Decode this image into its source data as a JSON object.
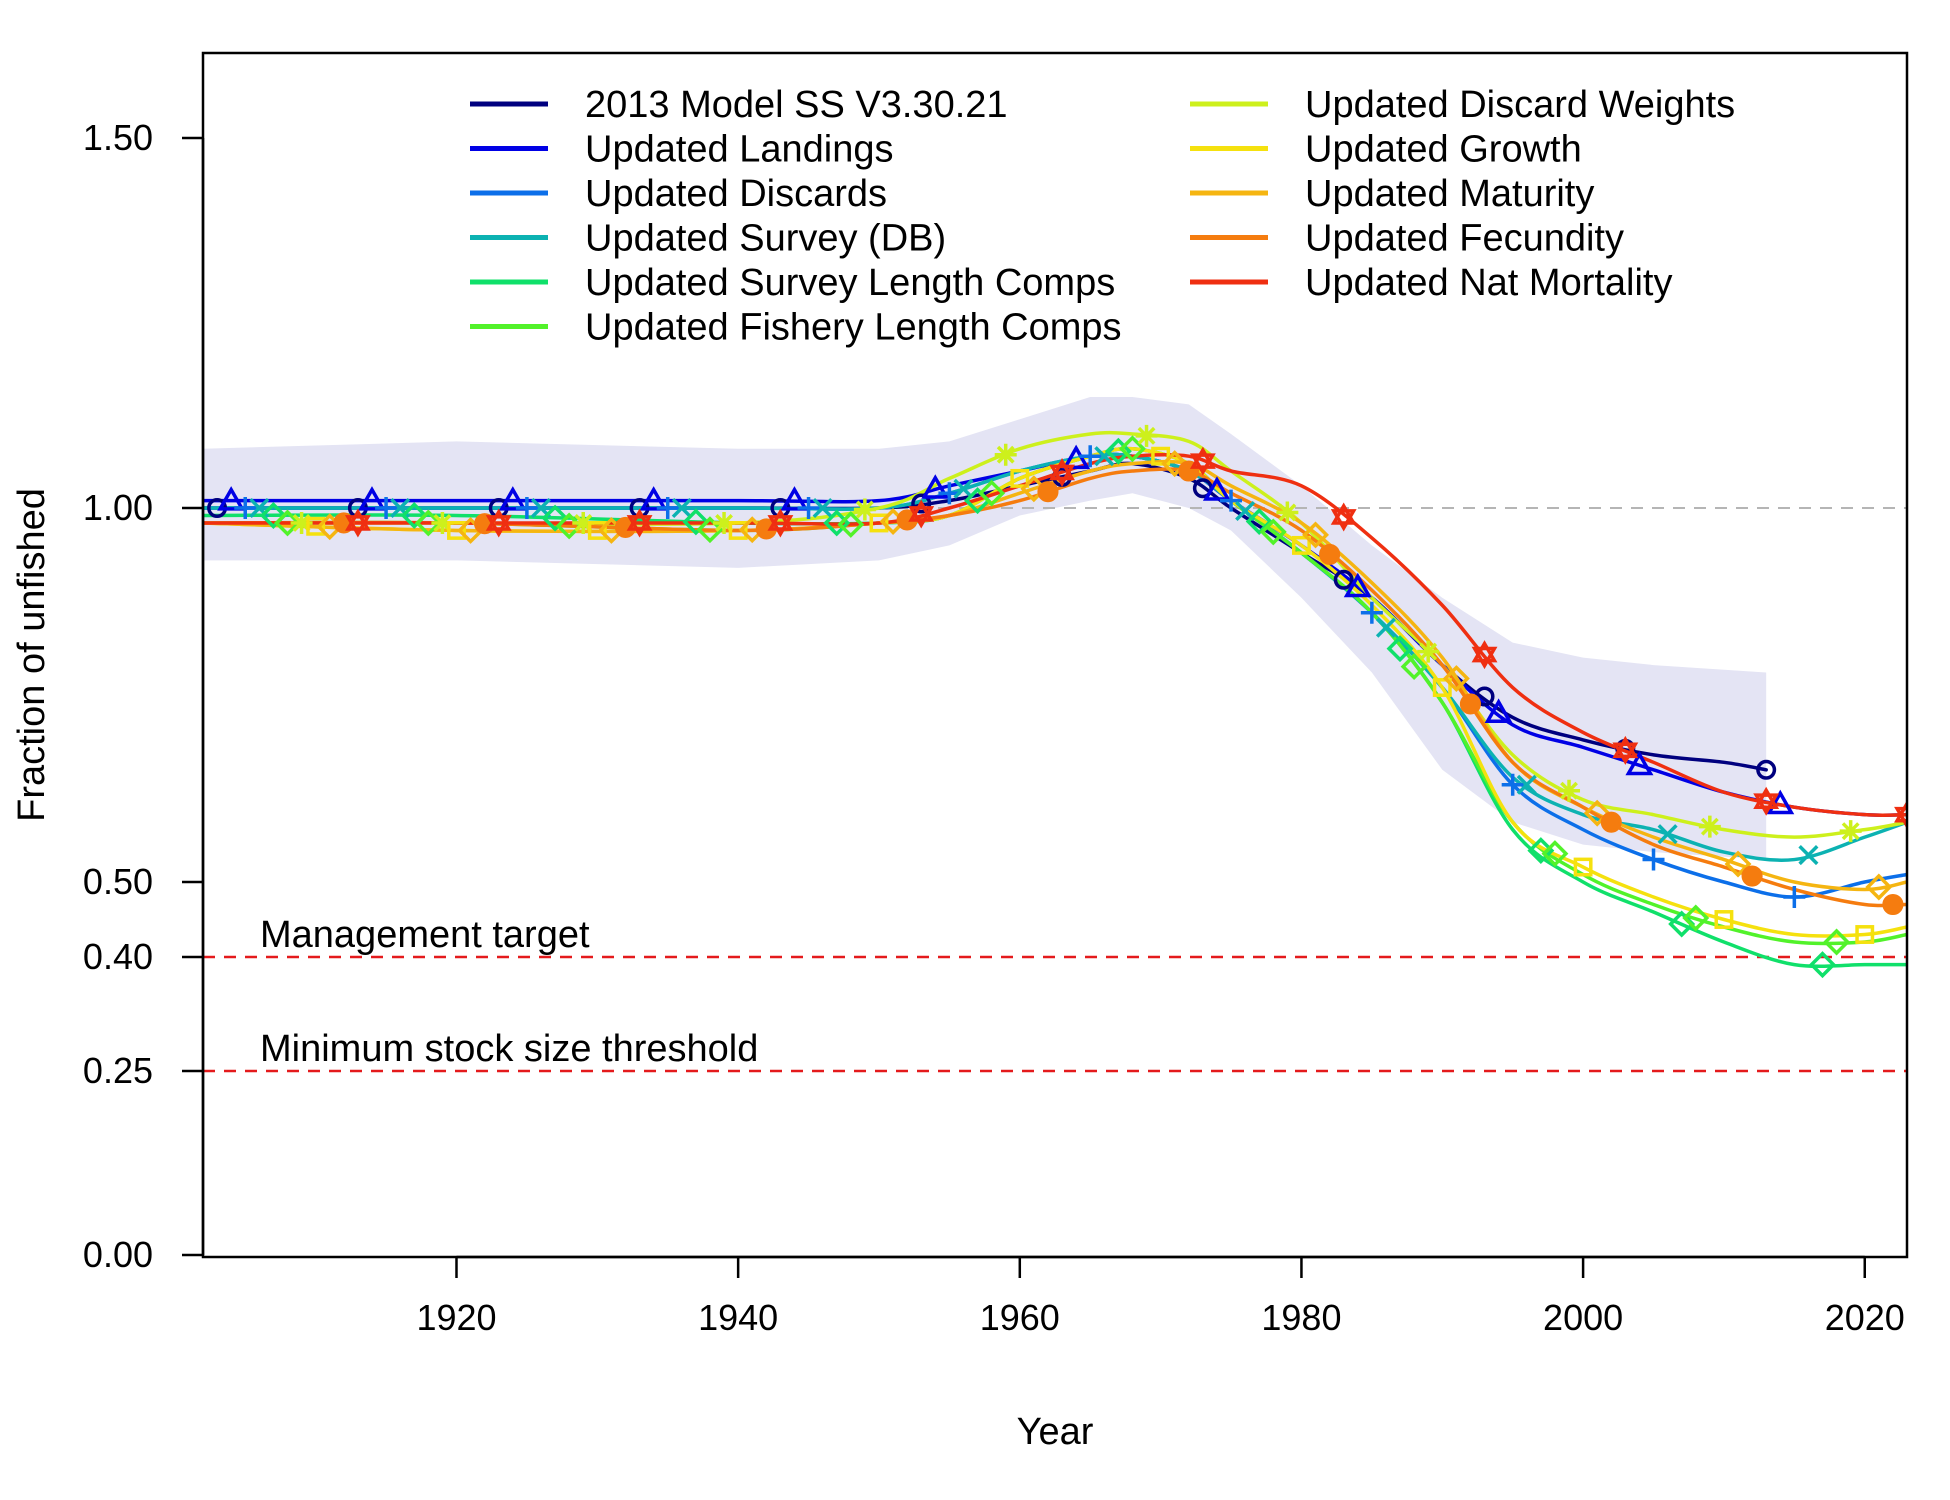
{
  "chart_data": {
    "type": "line",
    "title": "",
    "xlabel": "Year",
    "ylabel": "Fraction of unfished",
    "xlim": [
      1902,
      2023
    ],
    "ylim": [
      0,
      1.5
    ],
    "x_ticks": [
      1920,
      1940,
      1960,
      1980,
      2000,
      2020
    ],
    "x_tick_labels": [
      "1920",
      "1940",
      "1960",
      "1980",
      "2000",
      "2020"
    ],
    "y_ticks": [
      0,
      0.25,
      0.4,
      0.5,
      1.0,
      1.5
    ],
    "y_tick_labels": [
      "0.00",
      "0.25",
      "0.40",
      "0.50",
      "1.00",
      "1.50"
    ],
    "unfished_line": 1.0,
    "reference_lines": [
      {
        "y": 0.4,
        "label": "Management target",
        "color": "#e41a1c"
      },
      {
        "y": 0.25,
        "label": "Minimum stock size threshold",
        "color": "#e41a1c"
      }
    ],
    "uncertainty_band": {
      "color": "#e4e4f4",
      "x": [
        1902,
        1920,
        1940,
        1950,
        1955,
        1960,
        1965,
        1968,
        1972,
        1975,
        1980,
        1985,
        1990,
        1995,
        2000,
        2005,
        2013
      ],
      "upper": [
        1.08,
        1.09,
        1.08,
        1.08,
        1.09,
        1.12,
        1.15,
        1.15,
        1.14,
        1.1,
        1.03,
        0.95,
        0.88,
        0.82,
        0.8,
        0.79,
        0.78
      ],
      "lower": [
        0.93,
        0.93,
        0.92,
        0.93,
        0.95,
        0.99,
        1.01,
        1.02,
        1.0,
        0.97,
        0.88,
        0.78,
        0.65,
        0.58,
        0.55,
        0.54,
        0.53
      ]
    },
    "legend_position": "top",
    "series": [
      {
        "name": "2013 Model SS V3.30.21",
        "color": "#00007f",
        "marker": "circle",
        "x": [
          1902,
          1920,
          1940,
          1950,
          1955,
          1960,
          1965,
          1968,
          1972,
          1975,
          1980,
          1985,
          1990,
          1995,
          2000,
          2005,
          2010,
          2013
        ],
        "y": [
          1.0,
          1.0,
          1.0,
          1.0,
          1.01,
          1.03,
          1.05,
          1.06,
          1.04,
          1.0,
          0.94,
          0.88,
          0.79,
          0.72,
          0.69,
          0.67,
          0.66,
          0.65
        ]
      },
      {
        "name": "Updated Landings",
        "color": "#0000e5",
        "marker": "triangle",
        "x": [
          1902,
          1920,
          1940,
          1950,
          1955,
          1960,
          1965,
          1968,
          1972,
          1975,
          1980,
          1985,
          1990,
          1995,
          2000,
          2005,
          2010,
          2015,
          2020,
          2023
        ],
        "y": [
          1.01,
          1.01,
          1.01,
          1.01,
          1.03,
          1.05,
          1.07,
          1.07,
          1.05,
          1.01,
          0.95,
          0.88,
          0.79,
          0.71,
          0.68,
          0.65,
          0.62,
          0.6,
          0.59,
          0.59
        ]
      },
      {
        "name": "Updated Discards",
        "color": "#0c6fe9",
        "marker": "plus",
        "x": [
          1902,
          1920,
          1940,
          1950,
          1955,
          1960,
          1965,
          1968,
          1972,
          1975,
          1980,
          1985,
          1990,
          1995,
          2000,
          2005,
          2010,
          2015,
          2020,
          2023
        ],
        "y": [
          1.0,
          1.0,
          1.0,
          1.0,
          1.02,
          1.05,
          1.07,
          1.07,
          1.05,
          1.01,
          0.94,
          0.86,
          0.76,
          0.63,
          0.57,
          0.53,
          0.5,
          0.48,
          0.5,
          0.51
        ]
      },
      {
        "name": "Updated Survey (DB)",
        "color": "#0cb2b2",
        "marker": "cross",
        "x": [
          1902,
          1920,
          1940,
          1950,
          1955,
          1960,
          1965,
          1968,
          1972,
          1975,
          1980,
          1985,
          1990,
          1995,
          2000,
          2005,
          2010,
          2015,
          2020,
          2023
        ],
        "y": [
          1.0,
          1.0,
          1.0,
          1.0,
          1.02,
          1.05,
          1.07,
          1.07,
          1.05,
          1.01,
          0.94,
          0.86,
          0.76,
          0.64,
          0.59,
          0.57,
          0.54,
          0.53,
          0.56,
          0.58
        ]
      },
      {
        "name": "Updated Survey Length Comps",
        "color": "#10e06a",
        "marker": "diamond",
        "x": [
          1902,
          1920,
          1940,
          1950,
          1955,
          1960,
          1965,
          1968,
          1972,
          1975,
          1980,
          1985,
          1990,
          1995,
          2000,
          2005,
          2010,
          2015,
          2020,
          2023
        ],
        "y": [
          0.99,
          0.99,
          0.98,
          0.98,
          0.99,
          1.04,
          1.07,
          1.08,
          1.06,
          1.01,
          0.94,
          0.86,
          0.74,
          0.57,
          0.5,
          0.46,
          0.42,
          0.39,
          0.39,
          0.39
        ]
      },
      {
        "name": "Updated Fishery Length Comps",
        "color": "#52f22a",
        "marker": "diamond",
        "x": [
          1902,
          1920,
          1940,
          1950,
          1955,
          1960,
          1965,
          1968,
          1972,
          1975,
          1980,
          1985,
          1990,
          1995,
          2000,
          2005,
          2010,
          2015,
          2020,
          2023
        ],
        "y": [
          0.98,
          0.98,
          0.97,
          0.98,
          0.99,
          1.04,
          1.07,
          1.08,
          1.06,
          1.01,
          0.94,
          0.86,
          0.74,
          0.58,
          0.51,
          0.47,
          0.44,
          0.42,
          0.42,
          0.43
        ]
      },
      {
        "name": "Updated Discard Weights",
        "color": "#cdf01c",
        "marker": "star",
        "x": [
          1902,
          1920,
          1940,
          1950,
          1955,
          1960,
          1965,
          1968,
          1972,
          1975,
          1980,
          1985,
          1990,
          1995,
          2000,
          2005,
          2010,
          2015,
          2020,
          2023
        ],
        "y": [
          0.98,
          0.98,
          0.98,
          1.0,
          1.04,
          1.08,
          1.1,
          1.1,
          1.09,
          1.05,
          0.98,
          0.88,
          0.79,
          0.67,
          0.61,
          0.59,
          0.57,
          0.56,
          0.57,
          0.58
        ]
      },
      {
        "name": "Updated Growth",
        "color": "#f5e10e",
        "marker": "square",
        "x": [
          1902,
          1920,
          1940,
          1950,
          1955,
          1960,
          1965,
          1968,
          1972,
          1975,
          1980,
          1985,
          1990,
          1995,
          2000,
          2005,
          2010,
          2015,
          2020,
          2023
        ],
        "y": [
          0.98,
          0.97,
          0.97,
          0.98,
          0.99,
          1.04,
          1.07,
          1.08,
          1.06,
          1.01,
          0.95,
          0.87,
          0.76,
          0.58,
          0.52,
          0.48,
          0.45,
          0.43,
          0.43,
          0.44
        ]
      },
      {
        "name": "Updated Maturity",
        "color": "#f5b511",
        "marker": "diamond",
        "x": [
          1902,
          1920,
          1940,
          1950,
          1955,
          1960,
          1965,
          1968,
          1972,
          1975,
          1980,
          1985,
          1990,
          1995,
          2000,
          2005,
          2010,
          2015,
          2020,
          2023
        ],
        "y": [
          0.98,
          0.97,
          0.97,
          0.98,
          0.99,
          1.02,
          1.05,
          1.06,
          1.06,
          1.03,
          0.98,
          0.9,
          0.8,
          0.66,
          0.6,
          0.56,
          0.53,
          0.5,
          0.49,
          0.5
        ]
      },
      {
        "name": "Updated Fecundity",
        "color": "#f57c0f",
        "marker": "circle-filled",
        "x": [
          1902,
          1920,
          1940,
          1950,
          1955,
          1960,
          1965,
          1968,
          1972,
          1975,
          1980,
          1985,
          1990,
          1995,
          2000,
          2005,
          2010,
          2015,
          2020,
          2023
        ],
        "y": [
          0.98,
          0.98,
          0.97,
          0.98,
          0.99,
          1.01,
          1.04,
          1.05,
          1.05,
          1.02,
          0.97,
          0.89,
          0.79,
          0.66,
          0.6,
          0.55,
          0.52,
          0.49,
          0.47,
          0.47
        ]
      },
      {
        "name": "Updated Nat Mortality",
        "color": "#ef2f11",
        "marker": "hexagram",
        "x": [
          1902,
          1920,
          1940,
          1950,
          1955,
          1960,
          1965,
          1968,
          1972,
          1975,
          1980,
          1985,
          1990,
          1995,
          2000,
          2005,
          2010,
          2015,
          2020,
          2023
        ],
        "y": [
          0.98,
          0.98,
          0.98,
          0.98,
          1.0,
          1.03,
          1.06,
          1.07,
          1.07,
          1.05,
          1.03,
          0.96,
          0.87,
          0.76,
          0.7,
          0.66,
          0.62,
          0.6,
          0.59,
          0.59
        ]
      }
    ]
  }
}
